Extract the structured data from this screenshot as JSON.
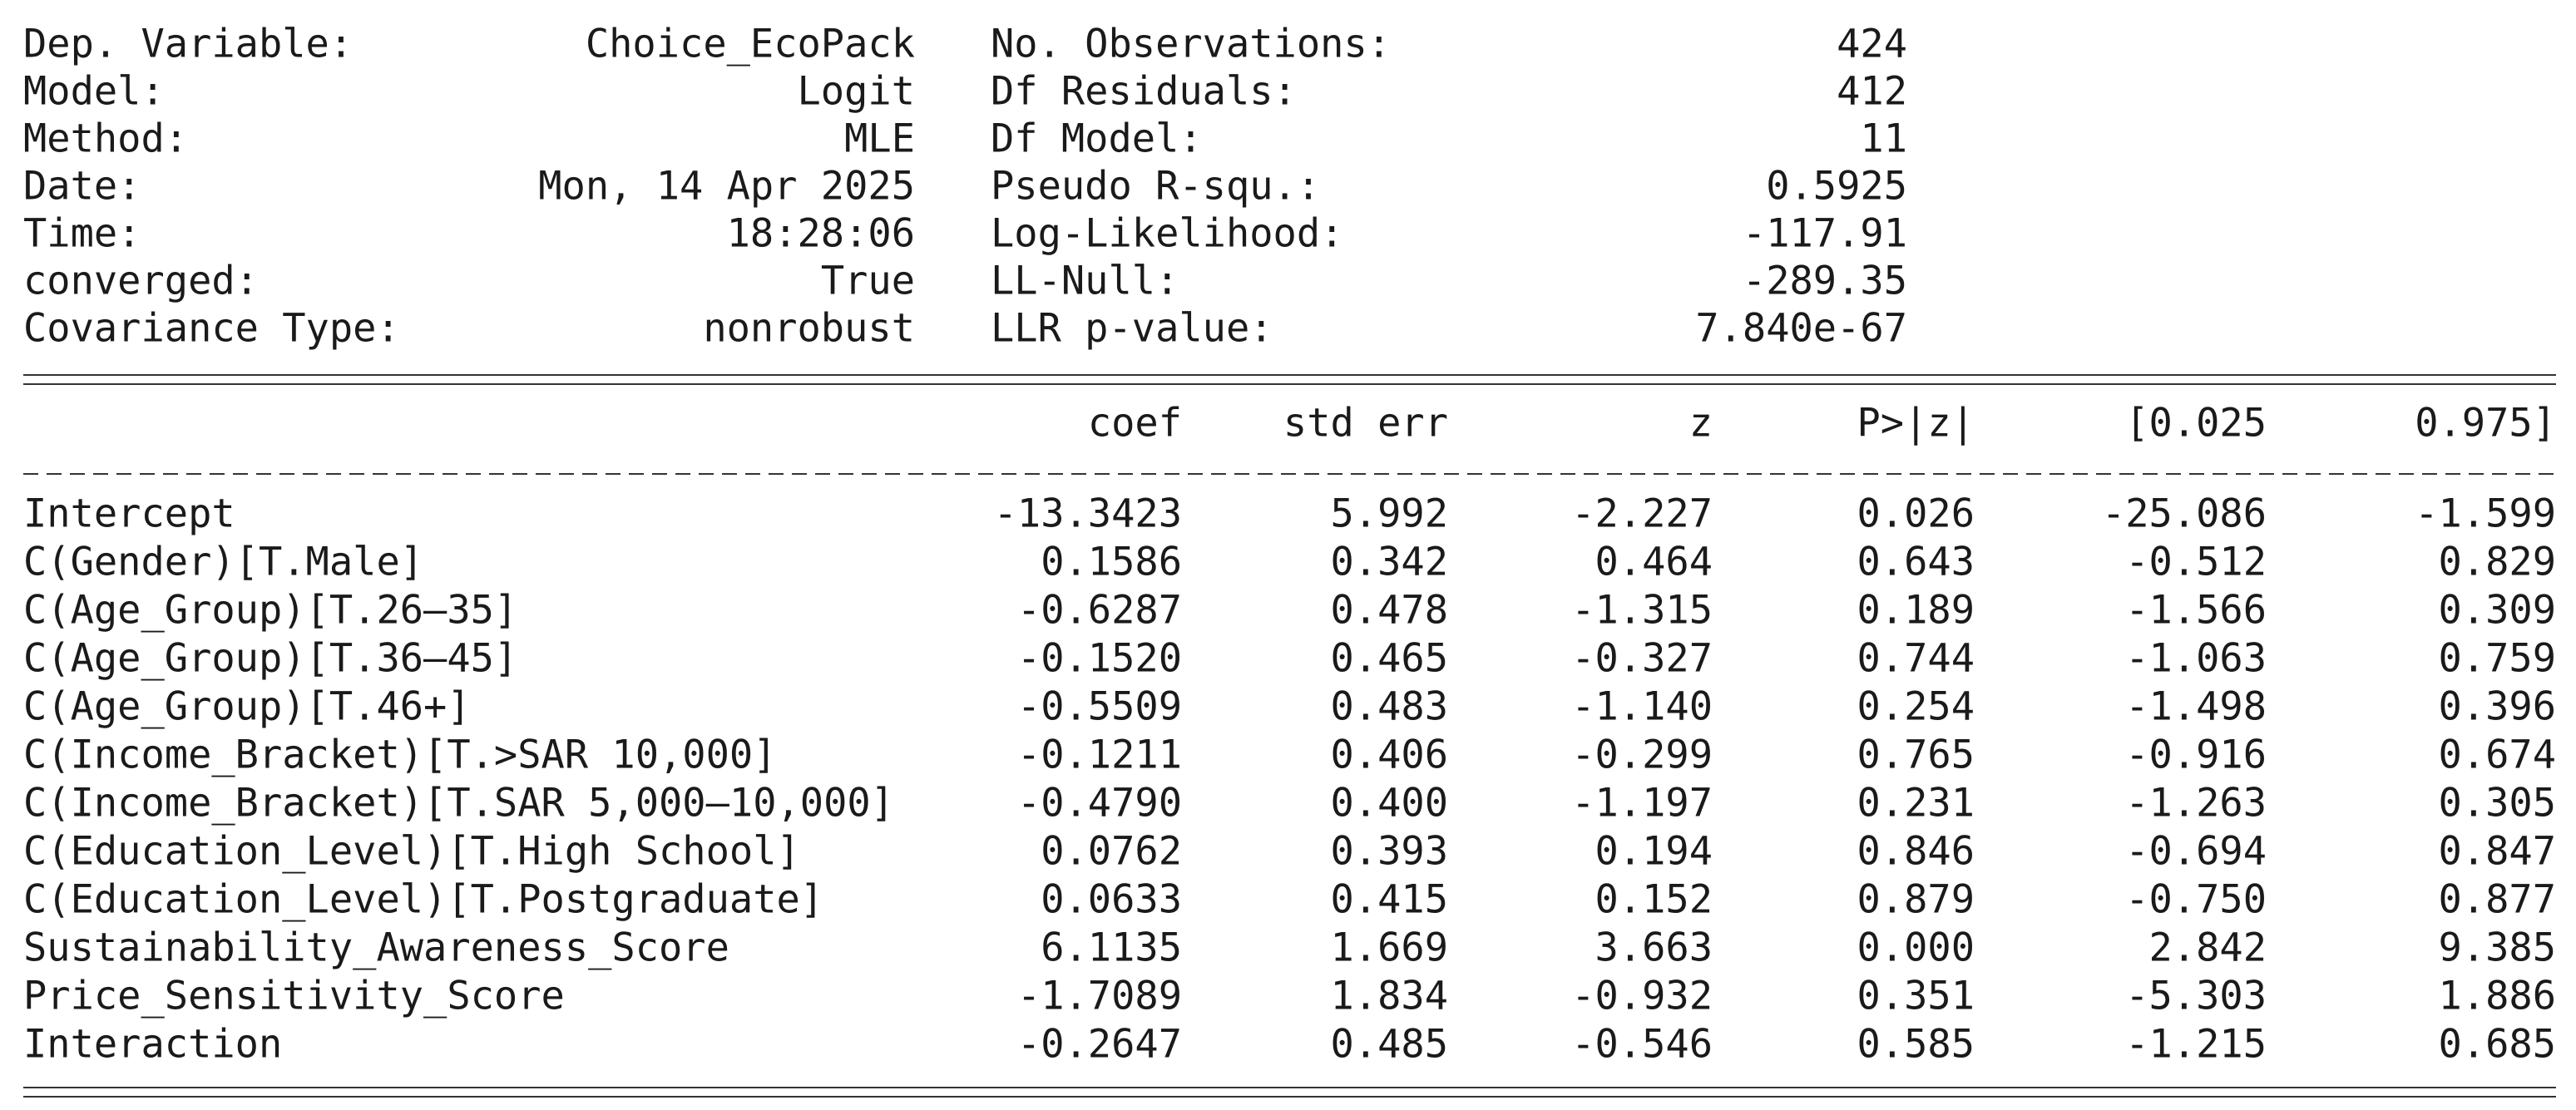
{
  "summary": {
    "info_left": [
      [
        "Dep. Variable:",
        "Choice_EcoPack"
      ],
      [
        "Model:",
        "Logit"
      ],
      [
        "Method:",
        "MLE"
      ],
      [
        "Date:",
        "Mon, 14 Apr 2025"
      ],
      [
        "Time:",
        "18:28:06"
      ],
      [
        "converged:",
        "True"
      ],
      [
        "Covariance Type:",
        "nonrobust"
      ]
    ],
    "info_right": [
      [
        "No. Observations:",
        "424"
      ],
      [
        "Df Residuals:",
        "412"
      ],
      [
        "Df Model:",
        "11"
      ],
      [
        "Pseudo R-squ.:",
        "0.5925"
      ],
      [
        "Log-Likelihood:",
        "-117.91"
      ],
      [
        "LL-Null:",
        "-289.35"
      ],
      [
        "LLR p-value:",
        "7.840e-67"
      ]
    ],
    "columns": [
      "coef",
      "std err",
      "z",
      "P>|z|",
      "[0.025",
      "0.975]"
    ],
    "rows": [
      [
        "Intercept",
        "-13.3423",
        "5.992",
        "-2.227",
        "0.026",
        "-25.086",
        "-1.599"
      ],
      [
        "C(Gender)[T.Male]",
        "0.1586",
        "0.342",
        "0.464",
        "0.643",
        "-0.512",
        "0.829"
      ],
      [
        "C(Age_Group)[T.26–35]",
        "-0.6287",
        "0.478",
        "-1.315",
        "0.189",
        "-1.566",
        "0.309"
      ],
      [
        "C(Age_Group)[T.36–45]",
        "-0.1520",
        "0.465",
        "-0.327",
        "0.744",
        "-1.063",
        "0.759"
      ],
      [
        "C(Age_Group)[T.46+]",
        "-0.5509",
        "0.483",
        "-1.140",
        "0.254",
        "-1.498",
        "0.396"
      ],
      [
        "C(Income_Bracket)[T.>SAR 10,000]",
        "-0.1211",
        "0.406",
        "-0.299",
        "0.765",
        "-0.916",
        "0.674"
      ],
      [
        "C(Income_Bracket)[T.SAR 5,000–10,000]",
        "-0.4790",
        "0.400",
        "-1.197",
        "0.231",
        "-1.263",
        "0.305"
      ],
      [
        "C(Education_Level)[T.High School]",
        "0.0762",
        "0.393",
        "0.194",
        "0.846",
        "-0.694",
        "0.847"
      ],
      [
        "C(Education_Level)[T.Postgraduate]",
        "0.0633",
        "0.415",
        "0.152",
        "0.879",
        "-0.750",
        "0.877"
      ],
      [
        "Sustainability_Awareness_Score",
        "6.1135",
        "1.669",
        "3.663",
        "0.000",
        "2.842",
        "9.385"
      ],
      [
        "Price_Sensitivity_Score",
        "-1.7089",
        "1.834",
        "-0.932",
        "0.351",
        "-5.303",
        "1.886"
      ],
      [
        "Interaction",
        "-0.2647",
        "0.485",
        "-0.546",
        "0.585",
        "-1.215",
        "0.685"
      ]
    ]
  }
}
